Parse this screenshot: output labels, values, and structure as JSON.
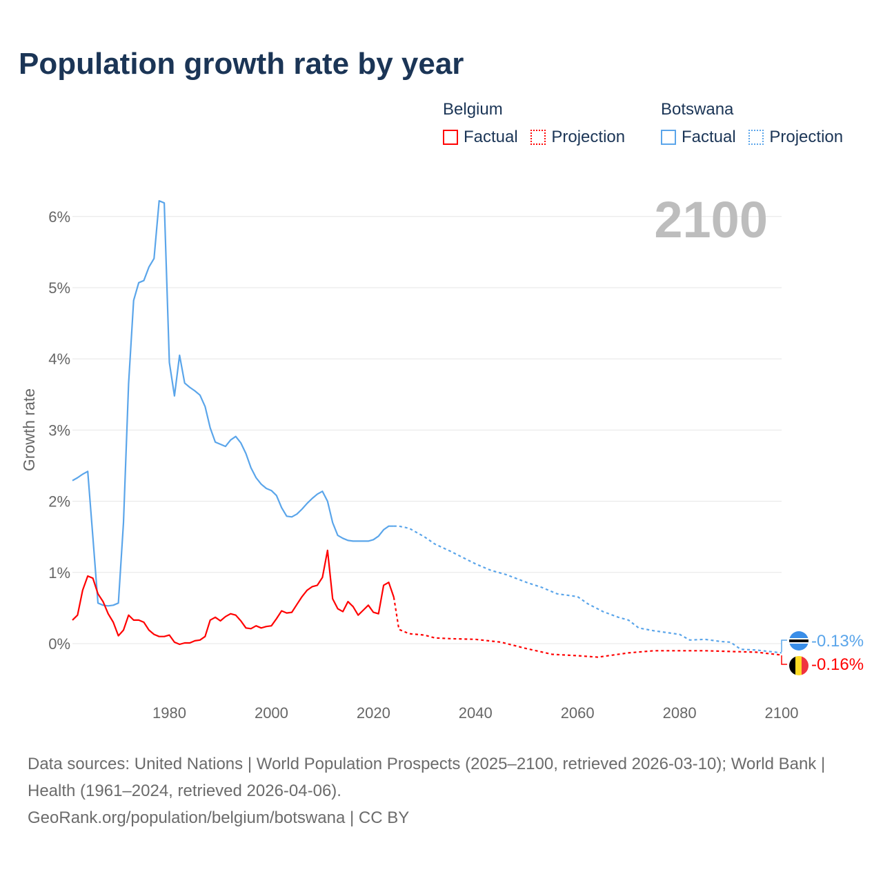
{
  "title": "Population growth rate by year",
  "legend": {
    "groups": [
      {
        "name": "Belgium",
        "factual": "Factual",
        "projection": "Projection",
        "color": "#ff0000"
      },
      {
        "name": "Botswana",
        "factual": "Factual",
        "projection": "Projection",
        "color": "#5aa5ea"
      }
    ]
  },
  "current_year": "2100",
  "end_labels": {
    "botswana": "-0.13%",
    "belgium": "-0.16%"
  },
  "footer": {
    "sources": "Data sources: United Nations | World Population Prospects (2025–2100, retrieved 2026-03-10); World Bank | Health (1961–2024, retrieved 2026-04-06).",
    "link": "GeoRank.org/population/belgium/botswana | CC BY"
  },
  "chart_data": {
    "type": "line",
    "title": "Population growth rate by year",
    "xlabel": "",
    "ylabel": "Growth rate",
    "xlim": [
      1961,
      2100
    ],
    "ylim": [
      -0.7,
      6.3
    ],
    "xticks": [
      "1980",
      "2000",
      "2020",
      "2040",
      "2060",
      "2080",
      "2100"
    ],
    "yticks": [
      "0%",
      "1%",
      "2%",
      "3%",
      "4%",
      "5%",
      "6%"
    ],
    "grid": true,
    "legend_position": "top-right",
    "series": [
      {
        "name": "Botswana Factual",
        "color": "#5aa5ea",
        "style": "solid",
        "x_start": 1961,
        "values": [
          2.29,
          2.33,
          2.38,
          2.42,
          1.5,
          0.57,
          0.54,
          0.53,
          0.54,
          0.57,
          1.7,
          3.65,
          4.82,
          5.07,
          5.1,
          5.29,
          5.41,
          6.22,
          6.19,
          3.95,
          3.48,
          4.05,
          3.66,
          3.6,
          3.55,
          3.49,
          3.33,
          3.03,
          2.83,
          2.8,
          2.77,
          2.86,
          2.91,
          2.82,
          2.67,
          2.47,
          2.33,
          2.24,
          2.18,
          2.15,
          2.08,
          1.91,
          1.79,
          1.78,
          1.82,
          1.89,
          1.97,
          2.04,
          2.1,
          2.14,
          2.0,
          1.7,
          1.52,
          1.48,
          1.45,
          1.44,
          1.44,
          1.44,
          1.44,
          1.46,
          1.51,
          1.6,
          1.65,
          1.65
        ]
      },
      {
        "name": "Botswana Projection",
        "color": "#5aa5ea",
        "style": "dotted",
        "x": [
          2024,
          2025,
          2027,
          2030,
          2032,
          2035,
          2040,
          2043,
          2046,
          2050,
          2053,
          2056,
          2060,
          2062,
          2065,
          2068,
          2070,
          2072,
          2075,
          2078,
          2080,
          2082,
          2085,
          2088,
          2090,
          2092,
          2095,
          2100
        ],
        "values": [
          1.65,
          1.65,
          1.62,
          1.5,
          1.4,
          1.3,
          1.12,
          1.03,
          0.97,
          0.86,
          0.79,
          0.7,
          0.66,
          0.56,
          0.45,
          0.37,
          0.33,
          0.22,
          0.18,
          0.15,
          0.13,
          0.05,
          0.06,
          0.03,
          0.02,
          -0.08,
          -0.09,
          -0.13
        ]
      },
      {
        "name": "Belgium Factual",
        "color": "#ff0000",
        "style": "solid",
        "x_start": 1961,
        "values": [
          0.33,
          0.4,
          0.75,
          0.95,
          0.92,
          0.7,
          0.59,
          0.42,
          0.3,
          0.11,
          0.19,
          0.4,
          0.33,
          0.33,
          0.3,
          0.19,
          0.13,
          0.1,
          0.1,
          0.12,
          0.02,
          -0.01,
          0.01,
          0.01,
          0.04,
          0.05,
          0.1,
          0.33,
          0.37,
          0.32,
          0.38,
          0.42,
          0.4,
          0.32,
          0.22,
          0.21,
          0.25,
          0.22,
          0.24,
          0.25,
          0.35,
          0.46,
          0.43,
          0.44,
          0.55,
          0.66,
          0.75,
          0.8,
          0.82,
          0.93,
          1.31,
          0.63,
          0.49,
          0.45,
          0.59,
          0.52,
          0.4,
          0.47,
          0.54,
          0.44,
          0.42,
          0.82,
          0.86,
          0.65
        ]
      },
      {
        "name": "Belgium Projection",
        "color": "#ff0000",
        "style": "dotted",
        "x": [
          2024,
          2025,
          2027,
          2030,
          2032,
          2035,
          2040,
          2045,
          2050,
          2055,
          2060,
          2064,
          2070,
          2075,
          2080,
          2085,
          2090,
          2095,
          2100
        ],
        "values": [
          0.65,
          0.2,
          0.14,
          0.12,
          0.08,
          0.07,
          0.06,
          0.02,
          -0.07,
          -0.15,
          -0.17,
          -0.19,
          -0.13,
          -0.1,
          -0.1,
          -0.1,
          -0.11,
          -0.12,
          -0.16
        ]
      }
    ]
  }
}
